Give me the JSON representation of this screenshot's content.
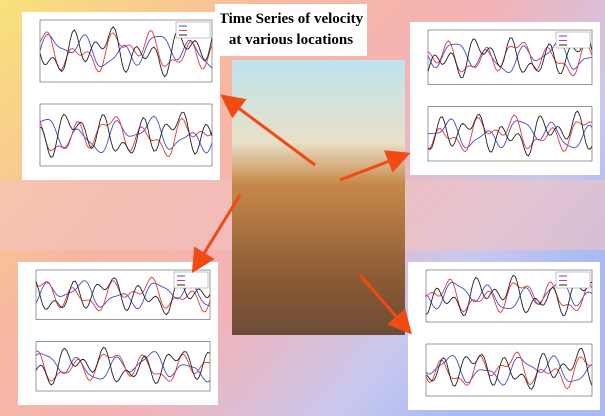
{
  "title": {
    "line1": "Time Series of velocity",
    "line2": "at various locations"
  }
}
